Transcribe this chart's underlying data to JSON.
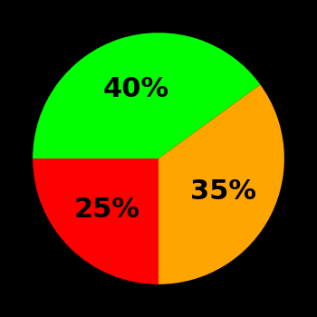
{
  "slices": [
    {
      "label": "40%",
      "value": 40,
      "color": "#00ff00"
    },
    {
      "label": "35%",
      "value": 35,
      "color": "#ffa500"
    },
    {
      "label": "25%",
      "value": 25,
      "color": "#ff0000"
    }
  ],
  "background_color": "#000000",
  "text_color": "#000000",
  "font_size": 22,
  "font_weight": "bold",
  "startangle": 180
}
